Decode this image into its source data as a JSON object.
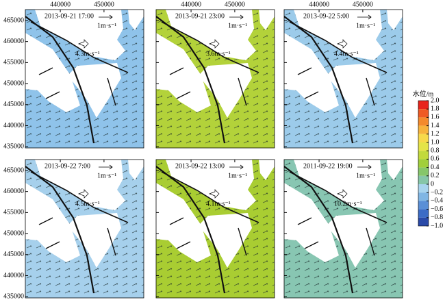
{
  "xlim": [
    432000,
    459100
  ],
  "ylim": [
    434700,
    467600
  ],
  "xticks": [
    440000,
    450000
  ],
  "yticks": [
    435000,
    440000,
    445000,
    450000,
    455000,
    460000,
    465000
  ],
  "panels": [
    {
      "title": "2013-09-21 17:00",
      "scale_label": "1m·s⁻¹",
      "wind_label": "4.3m·s⁻¹",
      "color": "#8fc3ea"
    },
    {
      "title": "2013-09-21 23:00",
      "scale_label": "1m·s⁻¹",
      "wind_label": "3.6m·s⁻¹",
      "color": "#b3d23a"
    },
    {
      "title": "2013-09-22 5:00",
      "scale_label": "1m·s⁻¹",
      "wind_label": "4.4m·s⁻¹",
      "color": "#9ccbea"
    },
    {
      "title": "2013-09-22 7:00",
      "scale_label": "1m·s⁻¹",
      "wind_label": "4.5m·s⁻¹",
      "color": "#a6d0ec"
    },
    {
      "title": "2013-09-22 13:00",
      "scale_label": "1m·s⁻¹",
      "wind_label": "4.1m·s⁻¹",
      "color": "#a9cd32"
    },
    {
      "title": "2011-09-22 19:00",
      "scale_label": "1m·s⁻¹",
      "wind_label": "10.2m·s⁻¹",
      "color": "#88c6b2"
    }
  ],
  "colorbar": {
    "title": "水位/m",
    "ticks": [
      {
        "value": 2,
        "label": "2.0"
      },
      1.8,
      1.6,
      1.4,
      1.2,
      {
        "value": 1,
        "label": "1.0"
      },
      0.8,
      0.6,
      0.4,
      0.2,
      0,
      {
        "value": -0.2,
        "label": "−0.2"
      },
      {
        "value": -0.4,
        "label": "−0.4"
      },
      {
        "value": -0.6,
        "label": "−0.6"
      },
      {
        "value": -0.8,
        "label": "−0.8"
      },
      {
        "value": -1,
        "label": "−1.0"
      }
    ],
    "colors": [
      "#e8241c",
      "#ef5a24",
      "#f48a2c",
      "#f7b33c",
      "#f7d94a",
      "#e4e448",
      "#c2da3c",
      "#a1cf3a",
      "#86c66a",
      "#86c6a8",
      "#a8d4ee",
      "#80b6e4",
      "#5a8fd6",
      "#3c6cc6",
      "#2a4aa8"
    ]
  }
}
